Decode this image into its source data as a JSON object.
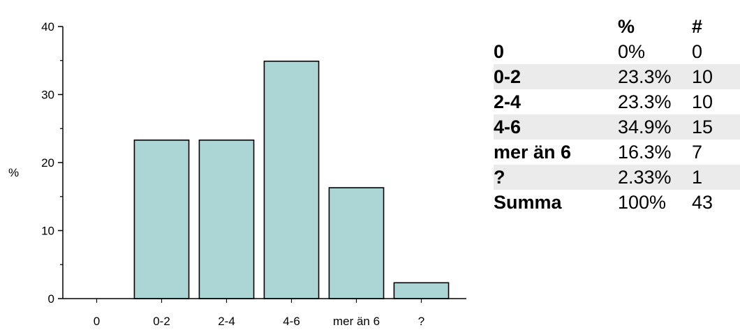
{
  "chart_data": {
    "type": "bar",
    "categories": [
      "0",
      "0-2",
      "2-4",
      "4-6",
      "mer än 6",
      "?"
    ],
    "values": [
      0,
      23.3,
      23.3,
      34.9,
      16.3,
      2.33
    ],
    "ylabel": "%",
    "xlabel": "",
    "ylim": [
      0,
      40
    ],
    "yticks": [
      0,
      10,
      20,
      30,
      40
    ],
    "bar_color": "#acd6d6",
    "grid": false
  },
  "summary_table": {
    "headers": [
      "",
      "%",
      "#"
    ],
    "rows": [
      {
        "label": "0",
        "percent": "0%",
        "count": "0"
      },
      {
        "label": "0-2",
        "percent": "23.3%",
        "count": "10"
      },
      {
        "label": "2-4",
        "percent": "23.3%",
        "count": "10"
      },
      {
        "label": "4-6",
        "percent": "34.9%",
        "count": "15"
      },
      {
        "label": "mer än 6",
        "percent": "16.3%",
        "count": "7"
      },
      {
        "label": "?",
        "percent": "2.33%",
        "count": "1"
      },
      {
        "label": "Summa",
        "percent": "100%",
        "count": "43"
      }
    ],
    "shaded_row_color": "#ebebeb"
  }
}
